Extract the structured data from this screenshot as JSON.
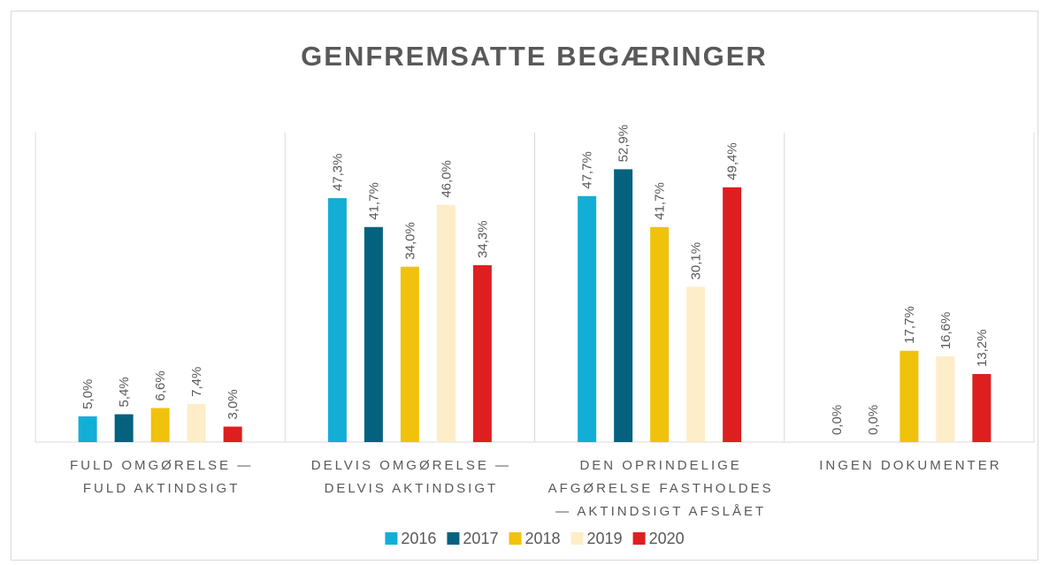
{
  "chart_data": {
    "type": "bar",
    "title": "GENFREMSATTE BEGÆRINGER",
    "categories": [
      "FULD OMGØRELSE — FULD AKTINDSIGT",
      "DELVIS OMGØRELSE — DELVIS AKTINDSIGT",
      "DEN OPRINDELIGE AFGØRELSE FASTHOLDES — AKTINDSIGT AFSLÅET",
      "INGEN DOKUMENTER"
    ],
    "series": [
      {
        "name": "2016",
        "color": "#12aed6",
        "values": [
          5.0,
          47.3,
          47.7,
          0.0
        ],
        "value_labels": [
          "5,0%",
          "47,3%",
          "47,7%",
          "0,0%"
        ]
      },
      {
        "name": "2017",
        "color": "#05627f",
        "values": [
          5.4,
          41.7,
          52.9,
          0.0
        ],
        "value_labels": [
          "5,4%",
          "41,7%",
          "52,9%",
          "0,0%"
        ]
      },
      {
        "name": "2018",
        "color": "#f0c20c",
        "values": [
          6.6,
          34.0,
          41.7,
          17.7
        ],
        "value_labels": [
          "6,6%",
          "34,0%",
          "41,7%",
          "17,7%"
        ]
      },
      {
        "name": "2019",
        "color": "#fdedc8",
        "values": [
          7.4,
          46.0,
          30.1,
          16.6
        ],
        "value_labels": [
          "7,4%",
          "46,0%",
          "30,1%",
          "16,6%"
        ]
      },
      {
        "name": "2020",
        "color": "#dd1f1f",
        "values": [
          3.0,
          34.3,
          49.4,
          13.2
        ],
        "value_labels": [
          "3,0%",
          "34,3%",
          "49,4%",
          "13,2%"
        ]
      }
    ],
    "ylim": [
      0,
      60
    ],
    "legend": "bottom"
  }
}
